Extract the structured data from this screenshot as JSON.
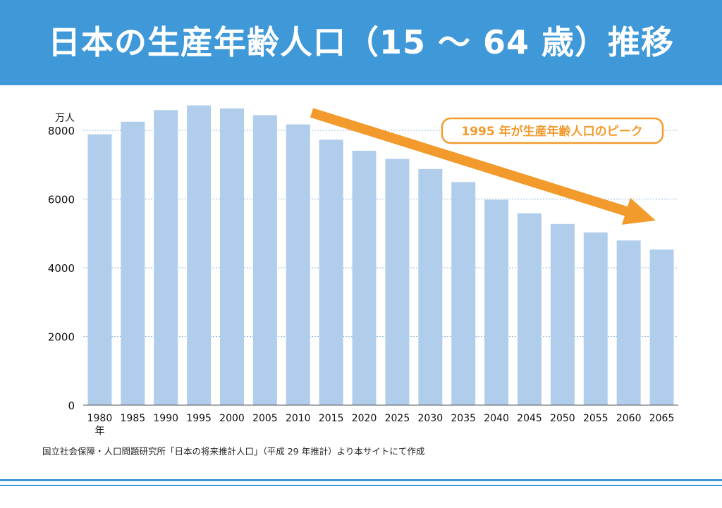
{
  "header": {
    "title": "日本の生産年齢人口（15 ～ 64 歳）推移"
  },
  "source_note": "国立社会保障・人口問題研究所「日本の将来推計人口」（平成 29 年推計）より本サイトにて作成",
  "colors": {
    "header": "#3f98d8",
    "bar": "#b1cdec",
    "accent": "#f39a2c",
    "grid": "#8fb8dc"
  },
  "chart_data": {
    "type": "bar",
    "title": "",
    "ylabel": "万人",
    "xlabel": "年",
    "ylim": [
      0,
      8000
    ],
    "yticks": [
      0,
      2000,
      4000,
      6000,
      8000
    ],
    "categories": [
      "1980",
      "1985",
      "1990",
      "1995",
      "2000",
      "2005",
      "2010",
      "2015",
      "2020",
      "2025",
      "2030",
      "2035",
      "2040",
      "2045",
      "2050",
      "2055",
      "2060",
      "2065"
    ],
    "values": [
      7883,
      8251,
      8590,
      8726,
      8638,
      8442,
      8173,
      7728,
      7406,
      7170,
      6875,
      6494,
      5978,
      5584,
      5275,
      5028,
      4793,
      4529
    ],
    "annotation": {
      "text": "1995 年が生産年齢人口のピーク",
      "arrow": "downward trend arrow"
    }
  }
}
